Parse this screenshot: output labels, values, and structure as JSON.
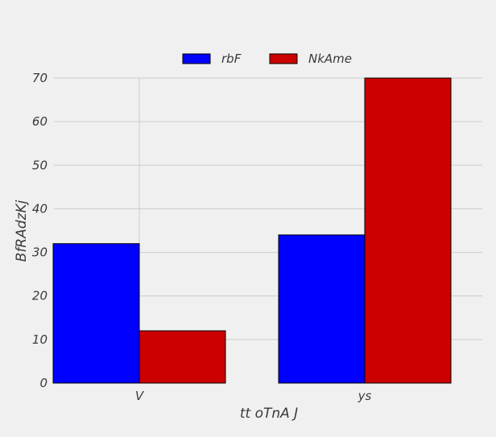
{
  "chart_data": {
    "type": "bar",
    "categories": [
      "V",
      "ys"
    ],
    "series": [
      {
        "name": "rbF",
        "values": [
          32,
          34
        ],
        "color": "#0000ff"
      },
      {
        "name": "NkAme",
        "values": [
          12,
          70
        ],
        "color": "#cc0000"
      }
    ],
    "xlabel": "tt oTnA J",
    "ylabel": "BfRAdzKj",
    "ylim": [
      0,
      70
    ],
    "yticks": [
      0,
      10,
      20,
      30,
      40,
      50,
      60,
      70
    ],
    "grid": true,
    "legend": "top-center",
    "background": "#f0f0f0",
    "grid_color": "#cbcbcb"
  }
}
